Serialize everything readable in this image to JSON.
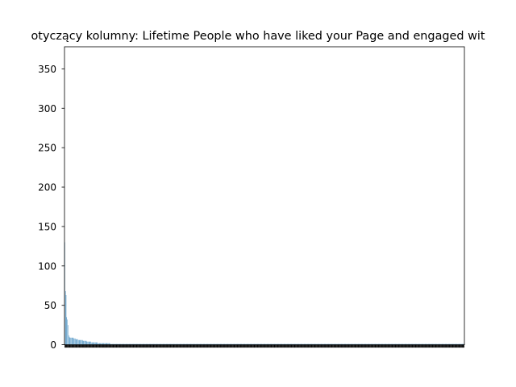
{
  "chart_data": {
    "type": "bar",
    "title": "otyczący kolumny: Lifetime People who have liked your Page and engaged wit",
    "xlabel": "",
    "ylabel": "",
    "ylim": [
      0,
      378
    ],
    "yticks": [
      0,
      50,
      100,
      150,
      200,
      250,
      300,
      350
    ],
    "grid": false,
    "bar_color": "#1f77b4",
    "values": [
      130,
      68,
      63,
      35,
      32,
      25,
      12,
      10,
      9,
      9,
      9,
      9,
      9,
      9,
      8,
      8,
      8,
      7,
      7,
      7,
      7,
      6,
      6,
      6,
      6,
      6,
      6,
      6,
      5,
      5,
      5,
      5,
      5,
      5,
      4,
      4,
      4,
      4,
      4,
      4,
      4,
      3,
      3,
      3,
      3,
      3,
      3,
      3,
      3,
      3,
      3,
      2,
      2,
      2,
      2,
      2,
      2,
      2,
      2,
      2,
      2,
      2,
      2,
      2,
      2,
      2,
      2,
      2,
      2,
      2,
      1,
      1,
      1,
      1,
      1,
      1,
      1,
      1,
      1,
      1,
      1,
      1,
      1,
      1,
      1,
      1,
      1,
      1,
      1,
      1,
      1,
      1,
      1,
      1,
      1,
      1,
      1,
      1,
      1,
      1,
      1,
      1,
      1,
      1,
      1,
      1,
      1,
      1,
      1,
      1,
      1,
      1,
      1,
      1,
      1,
      1,
      1,
      1,
      1,
      1,
      1,
      1,
      1,
      1,
      1,
      1,
      1,
      1,
      1,
      1,
      1,
      1,
      1,
      1,
      1,
      1,
      1,
      1,
      1,
      1,
      1,
      1,
      1,
      1,
      1,
      1,
      1,
      1,
      1,
      1,
      1,
      1,
      1,
      1,
      1,
      1,
      1,
      1,
      1,
      1,
      1,
      1,
      1,
      1,
      1,
      1,
      1,
      1,
      1,
      1,
      1,
      1,
      1,
      1,
      1,
      1,
      1,
      1,
      1,
      1,
      1,
      1,
      1,
      1,
      1,
      1,
      1,
      1,
      1,
      1,
      1,
      1,
      1,
      1,
      1,
      1,
      1,
      1,
      1,
      1,
      1,
      1,
      1,
      1,
      1,
      1,
      1,
      1,
      1,
      1,
      1,
      1,
      1,
      1,
      1,
      1,
      1,
      1,
      1,
      1,
      1,
      1,
      1,
      1,
      1,
      1,
      1,
      1,
      1,
      1,
      1,
      1,
      1,
      1,
      1,
      1,
      1,
      1,
      1,
      1,
      1,
      1,
      1,
      1,
      1,
      1,
      1,
      1,
      1,
      1,
      1,
      1,
      1,
      1,
      1,
      1,
      1,
      1,
      1,
      1,
      1,
      1,
      1,
      1,
      1,
      1,
      1,
      1,
      1,
      1,
      1,
      1,
      1,
      1,
      1,
      1,
      1,
      1,
      1,
      1,
      1,
      1,
      1,
      1,
      1,
      1,
      1,
      1,
      1,
      1,
      1,
      1,
      1,
      1,
      1,
      1,
      1,
      1,
      1,
      1,
      1,
      1,
      1,
      1,
      1,
      1,
      1,
      1,
      1,
      1,
      1,
      1,
      1,
      1,
      1,
      1,
      1,
      1,
      1,
      1,
      1,
      1,
      1,
      1,
      1,
      1,
      1,
      1,
      1,
      1,
      1,
      1,
      1,
      1,
      1,
      1,
      1,
      1,
      1,
      1,
      1,
      1,
      1,
      1,
      1,
      1,
      1,
      1,
      1,
      1,
      1,
      1,
      1,
      1,
      1,
      1,
      1,
      1,
      1,
      1,
      1,
      1,
      1,
      1,
      1,
      1,
      1,
      1,
      1,
      1,
      1,
      1,
      1,
      1,
      1,
      1,
      1,
      1,
      1,
      1,
      1,
      1,
      1,
      1,
      1,
      1,
      1,
      1,
      1,
      1,
      1,
      1,
      1,
      1,
      1,
      1,
      1,
      1,
      1,
      1,
      1,
      1,
      1,
      1,
      1,
      1,
      1,
      1,
      1,
      1,
      1,
      1,
      1,
      1,
      1,
      1,
      1,
      1,
      1,
      1,
      1,
      1,
      1,
      1,
      1,
      1,
      1,
      1,
      1,
      1,
      1,
      1,
      1,
      1,
      1,
      1,
      1,
      1,
      1,
      1,
      1,
      1,
      1,
      1,
      1,
      1,
      1,
      1,
      1,
      1,
      1,
      1,
      1,
      1,
      1,
      1,
      1,
      1,
      1,
      1,
      1,
      1,
      1,
      1,
      1,
      1,
      1,
      1,
      1,
      1,
      1,
      1,
      1,
      1,
      1,
      1,
      1,
      1,
      1,
      1,
      1,
      1,
      1,
      1,
      1,
      1,
      1,
      1,
      1,
      1,
      1,
      1,
      1,
      1,
      1,
      1,
      1,
      1,
      1,
      1,
      1,
      1,
      1,
      1,
      1,
      1,
      1,
      1,
      1,
      1,
      1,
      1,
      1,
      1,
      1,
      1,
      1,
      1,
      1,
      1,
      1,
      1,
      1,
      1,
      1,
      1,
      1,
      1,
      1,
      1,
      1,
      1,
      1,
      1,
      1,
      1,
      1,
      1,
      1,
      1,
      1,
      1,
      1,
      1,
      1,
      1,
      1,
      1,
      1,
      1,
      1,
      1,
      1,
      1,
      1,
      1,
      1,
      1,
      1,
      1,
      1,
      1,
      1,
      1,
      1,
      1,
      1,
      1,
      1,
      1,
      1,
      1,
      1,
      1,
      1,
      1,
      1,
      1,
      1,
      1,
      1,
      1,
      1,
      1,
      1,
      1,
      1,
      1,
      1,
      1,
      1,
      1,
      1,
      1,
      1,
      1,
      1,
      1,
      1,
      1,
      1,
      1,
      1,
      1,
      1,
      1,
      1,
      1,
      1,
      1,
      1,
      1,
      1,
      1,
      1
    ]
  }
}
